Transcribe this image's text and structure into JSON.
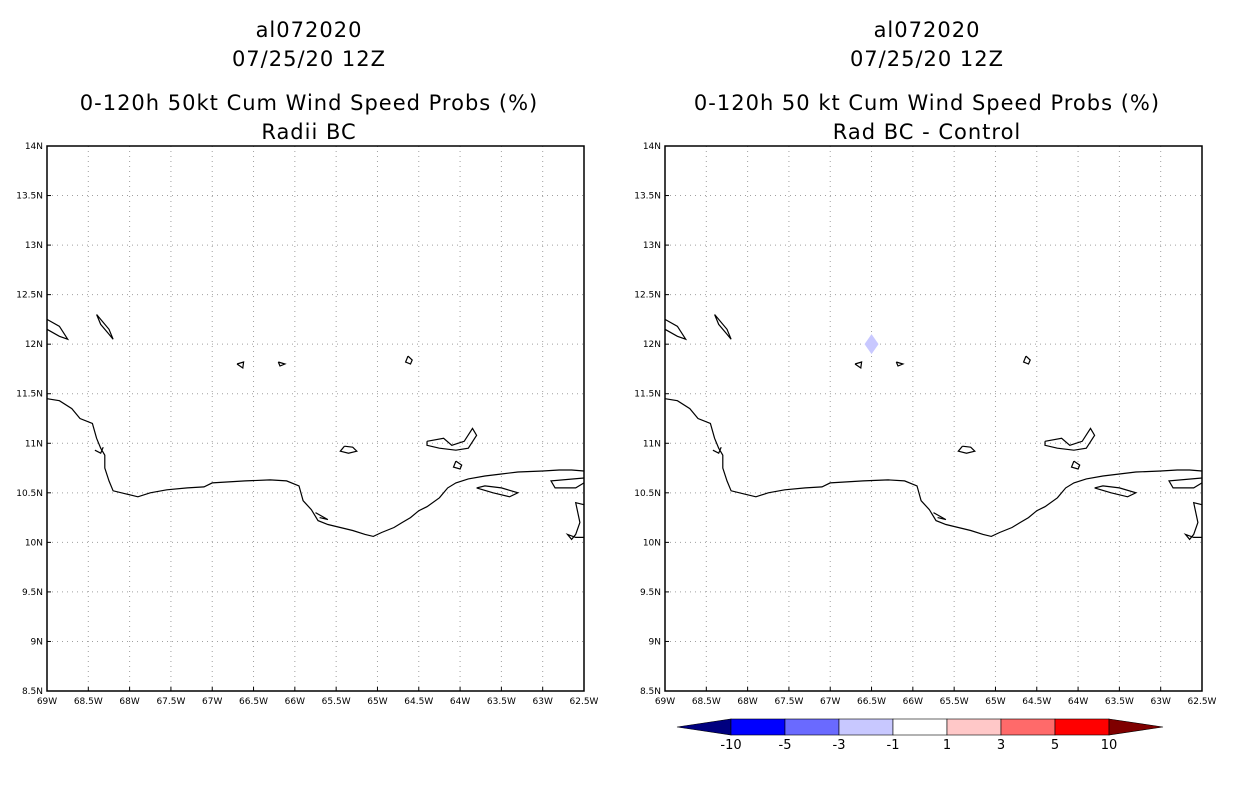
{
  "panels": [
    {
      "storm_id": "al072020",
      "datetime": "07/25/20 12Z",
      "product": "0-120h 50kt Cum Wind Speed Probs (%)",
      "subtitle": "Radii BC"
    },
    {
      "storm_id": "al072020",
      "datetime": "07/25/20 12Z",
      "product": "0-120h 50 kt Cum Wind Speed Probs (%)",
      "subtitle": "Rad BC - Control"
    }
  ],
  "axes": {
    "lat_labels": [
      "14N",
      "13.5N",
      "13N",
      "12.5N",
      "12N",
      "11.5N",
      "11N",
      "10.5N",
      "10N",
      "9.5N",
      "9N",
      "8.5N"
    ],
    "lon_labels": [
      "69W",
      "68.5W",
      "68W",
      "67.5W",
      "67W",
      "66.5W",
      "66W",
      "65.5W",
      "65W",
      "64.5W",
      "64W",
      "63.5W",
      "63W",
      "62.5W"
    ],
    "lat_range": [
      8.5,
      14
    ],
    "lon_range": [
      -69,
      -62.5
    ],
    "gridlines": true
  },
  "difference_feature": {
    "lon": -66.5,
    "lat": 12.0,
    "value_bin": "-3 to -1",
    "color": "#c8c8ff"
  },
  "colorbar": {
    "labels": [
      "-10",
      "-5",
      "-3",
      "-1",
      "1",
      "3",
      "5",
      "10"
    ],
    "colors": [
      "#00007f",
      "#0000ff",
      "#6a6aff",
      "#c8c8ff",
      "#ffffff",
      "#ffc8c8",
      "#ff6a6a",
      "#ff0000",
      "#7f0000"
    ]
  },
  "coastline_color": "#000000"
}
